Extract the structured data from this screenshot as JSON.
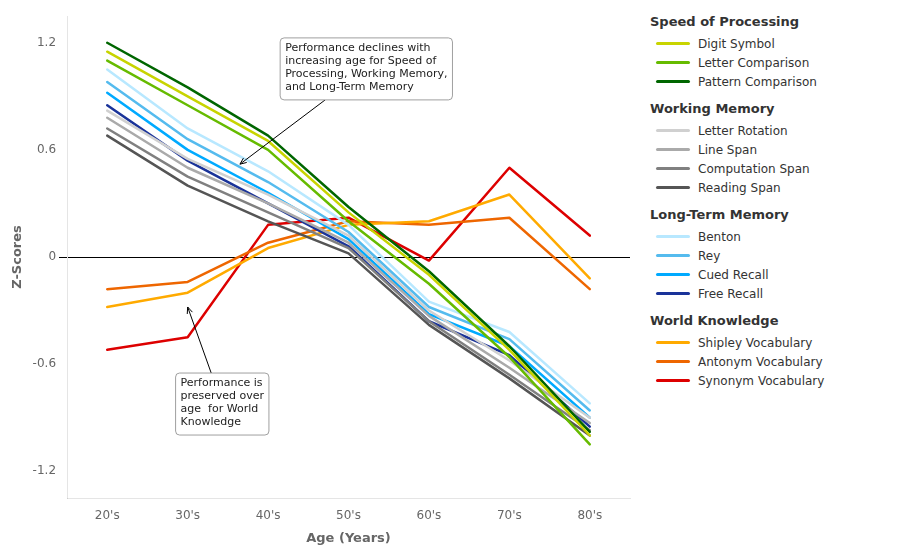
{
  "chart_data": {
    "type": "line",
    "categories": [
      "20's",
      "30's",
      "40's",
      "50's",
      "60's",
      "70's",
      "80's"
    ],
    "x_label": "Age (Years)",
    "y_label": "Z-Scores",
    "ylim": [
      -1.35,
      1.35
    ],
    "yticks": [
      -1.2,
      -0.6,
      0,
      0.6,
      1.2
    ],
    "grid": false,
    "legend": "right",
    "series": [
      {
        "name": "Digit Symbol",
        "group": "Speed of Processing",
        "color": "#c8d400",
        "values": [
          1.15,
          0.9,
          0.65,
          0.25,
          -0.1,
          -0.52,
          -1.0
        ]
      },
      {
        "name": "Letter Comparison",
        "group": "Speed of Processing",
        "color": "#66bb00",
        "values": [
          1.1,
          0.85,
          0.6,
          0.2,
          -0.15,
          -0.56,
          -1.05
        ]
      },
      {
        "name": "Pattern Comparison",
        "group": "Speed of Processing",
        "color": "#006600",
        "values": [
          1.2,
          0.95,
          0.68,
          0.28,
          -0.08,
          -0.5,
          -0.98
        ]
      },
      {
        "name": "Letter Rotation",
        "group": "Working Memory",
        "color": "#d0d0d0",
        "values": [
          0.82,
          0.55,
          0.35,
          0.12,
          -0.3,
          -0.58,
          -0.9
        ]
      },
      {
        "name": "Line Span",
        "group": "Working Memory",
        "color": "#aaaaaa",
        "values": [
          0.78,
          0.5,
          0.3,
          0.08,
          -0.33,
          -0.62,
          -0.93
        ]
      },
      {
        "name": "Computation Span",
        "group": "Working Memory",
        "color": "#808080",
        "values": [
          0.72,
          0.45,
          0.25,
          0.05,
          -0.36,
          -0.66,
          -0.97
        ]
      },
      {
        "name": "Reading Span",
        "group": "Working Memory",
        "color": "#555555",
        "values": [
          0.68,
          0.4,
          0.2,
          0.02,
          -0.38,
          -0.68,
          -1.0
        ]
      },
      {
        "name": "Benton",
        "group": "Long-Term Memory",
        "color": "#b8e8ff",
        "values": [
          1.05,
          0.72,
          0.48,
          0.18,
          -0.25,
          -0.42,
          -0.82
        ]
      },
      {
        "name": "Rey",
        "group": "Long-Term Memory",
        "color": "#55bbee",
        "values": [
          0.98,
          0.66,
          0.42,
          0.14,
          -0.28,
          -0.46,
          -0.86
        ]
      },
      {
        "name": "Cued Recall",
        "group": "Long-Term Memory",
        "color": "#00aaff",
        "values": [
          0.92,
          0.6,
          0.36,
          0.1,
          -0.32,
          -0.5,
          -0.9
        ]
      },
      {
        "name": "Free Recall",
        "group": "Long-Term Memory",
        "color": "#1a3399",
        "values": [
          0.85,
          0.54,
          0.3,
          0.06,
          -0.36,
          -0.55,
          -0.95
        ]
      },
      {
        "name": "Shipley Vocabulary",
        "group": "World Knowledge",
        "color": "#ffaa00",
        "values": [
          -0.28,
          -0.2,
          0.05,
          0.18,
          0.2,
          0.35,
          -0.12
        ]
      },
      {
        "name": "Antonym Vocabulary",
        "group": "World Knowledge",
        "color": "#ee6600",
        "values": [
          -0.18,
          -0.14,
          0.08,
          0.2,
          0.18,
          0.22,
          -0.18
        ]
      },
      {
        "name": "Synonym Vocabulary",
        "group": "World Knowledge",
        "color": "#dd0000",
        "values": [
          -0.52,
          -0.45,
          0.18,
          0.22,
          -0.02,
          0.5,
          0.12
        ]
      }
    ],
    "annotations": [
      {
        "text": "Performance declines with\nincreasing age for Speed of\nProcessing, Working Memory,\nand Long-Term Memory",
        "xy": [
          1.65,
          0.52
        ],
        "xytext": [
          2.15,
          0.88
        ]
      },
      {
        "text": "Performance is\npreserved over\nage  for World\nKnowledge",
        "xy": [
          1.0,
          -0.28
        ],
        "xytext": [
          0.85,
          -0.65
        ]
      }
    ]
  }
}
